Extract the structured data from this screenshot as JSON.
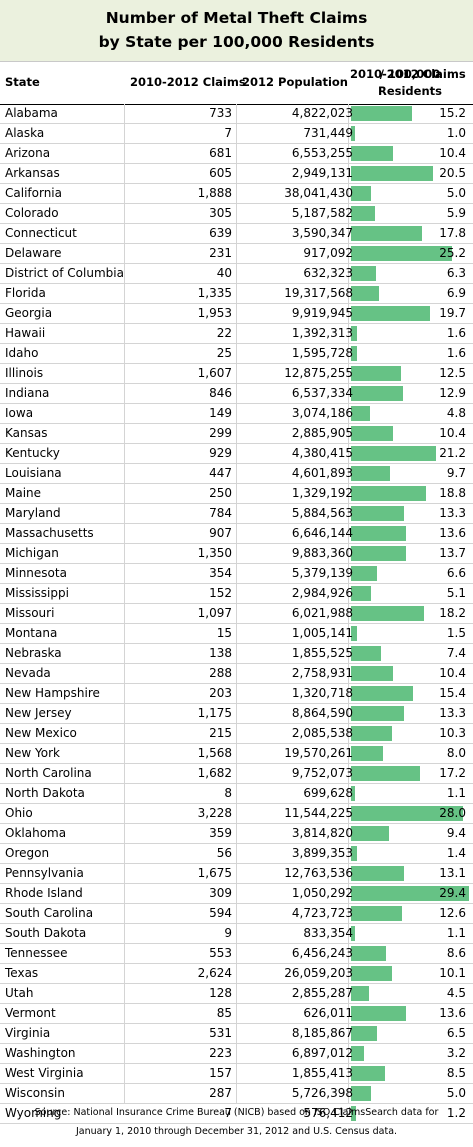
{
  "colors": {
    "title_bg": "#ebf1de",
    "bar": "#66c285"
  },
  "chart_data": {
    "type": "table",
    "title_line1": "Number of Metal Theft Claims",
    "title_line2": "by State per 100,000 Residents",
    "columns": {
      "state": "State",
      "claims": "2010-2012 Claims",
      "population": "2012 Population",
      "rate_line1": "2010-2012 Claims",
      "rate_line2": "/ 100,000 Residents"
    },
    "bar_max": 29.4,
    "rows": [
      {
        "state": "Alabama",
        "claims": "733",
        "population": "4,822,023",
        "rate": 15.2
      },
      {
        "state": "Alaska",
        "claims": "7",
        "population": "731,449",
        "rate": 1.0
      },
      {
        "state": "Arizona",
        "claims": "681",
        "population": "6,553,255",
        "rate": 10.4
      },
      {
        "state": "Arkansas",
        "claims": "605",
        "population": "2,949,131",
        "rate": 20.5
      },
      {
        "state": "California",
        "claims": "1,888",
        "population": "38,041,430",
        "rate": 5.0
      },
      {
        "state": "Colorado",
        "claims": "305",
        "population": "5,187,582",
        "rate": 5.9
      },
      {
        "state": "Connecticut",
        "claims": "639",
        "population": "3,590,347",
        "rate": 17.8
      },
      {
        "state": "Delaware",
        "claims": "231",
        "population": "917,092",
        "rate": 25.2
      },
      {
        "state": "District of Columbia",
        "claims": "40",
        "population": "632,323",
        "rate": 6.3
      },
      {
        "state": "Florida",
        "claims": "1,335",
        "population": "19,317,568",
        "rate": 6.9
      },
      {
        "state": "Georgia",
        "claims": "1,953",
        "population": "9,919,945",
        "rate": 19.7
      },
      {
        "state": "Hawaii",
        "claims": "22",
        "population": "1,392,313",
        "rate": 1.6
      },
      {
        "state": "Idaho",
        "claims": "25",
        "population": "1,595,728",
        "rate": 1.6
      },
      {
        "state": "Illinois",
        "claims": "1,607",
        "population": "12,875,255",
        "rate": 12.5
      },
      {
        "state": "Indiana",
        "claims": "846",
        "population": "6,537,334",
        "rate": 12.9
      },
      {
        "state": "Iowa",
        "claims": "149",
        "population": "3,074,186",
        "rate": 4.8
      },
      {
        "state": "Kansas",
        "claims": "299",
        "population": "2,885,905",
        "rate": 10.4
      },
      {
        "state": "Kentucky",
        "claims": "929",
        "population": "4,380,415",
        "rate": 21.2
      },
      {
        "state": "Louisiana",
        "claims": "447",
        "population": "4,601,893",
        "rate": 9.7
      },
      {
        "state": "Maine",
        "claims": "250",
        "population": "1,329,192",
        "rate": 18.8
      },
      {
        "state": "Maryland",
        "claims": "784",
        "population": "5,884,563",
        "rate": 13.3
      },
      {
        "state": "Massachusetts",
        "claims": "907",
        "population": "6,646,144",
        "rate": 13.6
      },
      {
        "state": "Michigan",
        "claims": "1,350",
        "population": "9,883,360",
        "rate": 13.7
      },
      {
        "state": "Minnesota",
        "claims": "354",
        "population": "5,379,139",
        "rate": 6.6
      },
      {
        "state": "Mississippi",
        "claims": "152",
        "population": "2,984,926",
        "rate": 5.1
      },
      {
        "state": "Missouri",
        "claims": "1,097",
        "population": "6,021,988",
        "rate": 18.2
      },
      {
        "state": "Montana",
        "claims": "15",
        "population": "1,005,141",
        "rate": 1.5
      },
      {
        "state": "Nebraska",
        "claims": "138",
        "population": "1,855,525",
        "rate": 7.4
      },
      {
        "state": "Nevada",
        "claims": "288",
        "population": "2,758,931",
        "rate": 10.4
      },
      {
        "state": "New Hampshire",
        "claims": "203",
        "population": "1,320,718",
        "rate": 15.4
      },
      {
        "state": "New Jersey",
        "claims": "1,175",
        "population": "8,864,590",
        "rate": 13.3
      },
      {
        "state": "New Mexico",
        "claims": "215",
        "population": "2,085,538",
        "rate": 10.3
      },
      {
        "state": "New York",
        "claims": "1,568",
        "population": "19,570,261",
        "rate": 8.0
      },
      {
        "state": "North Carolina",
        "claims": "1,682",
        "population": "9,752,073",
        "rate": 17.2
      },
      {
        "state": "North Dakota",
        "claims": "8",
        "population": "699,628",
        "rate": 1.1
      },
      {
        "state": "Ohio",
        "claims": "3,228",
        "population": "11,544,225",
        "rate": 28.0
      },
      {
        "state": "Oklahoma",
        "claims": "359",
        "population": "3,814,820",
        "rate": 9.4
      },
      {
        "state": "Oregon",
        "claims": "56",
        "population": "3,899,353",
        "rate": 1.4
      },
      {
        "state": "Pennsylvania",
        "claims": "1,675",
        "population": "12,763,536",
        "rate": 13.1
      },
      {
        "state": "Rhode Island",
        "claims": "309",
        "population": "1,050,292",
        "rate": 29.4
      },
      {
        "state": "South Carolina",
        "claims": "594",
        "population": "4,723,723",
        "rate": 12.6
      },
      {
        "state": "South Dakota",
        "claims": "9",
        "population": "833,354",
        "rate": 1.1
      },
      {
        "state": "Tennessee",
        "claims": "553",
        "population": "6,456,243",
        "rate": 8.6
      },
      {
        "state": "Texas",
        "claims": "2,624",
        "population": "26,059,203",
        "rate": 10.1
      },
      {
        "state": "Utah",
        "claims": "128",
        "population": "2,855,287",
        "rate": 4.5
      },
      {
        "state": "Vermont",
        "claims": "85",
        "population": "626,011",
        "rate": 13.6
      },
      {
        "state": "Virginia",
        "claims": "531",
        "population": "8,185,867",
        "rate": 6.5
      },
      {
        "state": "Washington",
        "claims": "223",
        "population": "6,897,012",
        "rate": 3.2
      },
      {
        "state": "West Virginia",
        "claims": "157",
        "population": "1,855,413",
        "rate": 8.5
      },
      {
        "state": "Wisconsin",
        "claims": "287",
        "population": "5,726,398",
        "rate": 5.0
      },
      {
        "state": "Wyoming",
        "claims": "7",
        "population": "576,412",
        "rate": 1.2
      }
    ],
    "source_line1": "Source: National Insurance Crime Bureau (NICB) based on ISO ClaimsSearch data for",
    "source_line2": "January 1, 2010 through December 31, 2012 and U.S. Census data."
  }
}
